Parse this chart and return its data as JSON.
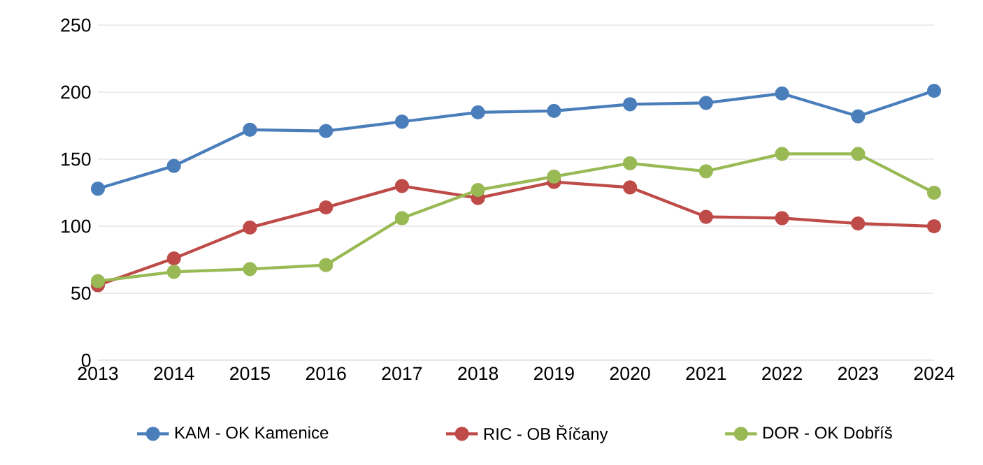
{
  "chart_data": {
    "type": "line",
    "x": [
      2013,
      2014,
      2015,
      2016,
      2017,
      2018,
      2019,
      2020,
      2021,
      2022,
      2023,
      2024
    ],
    "series": [
      {
        "name": "KAM - OK Kamenice",
        "color": "#4a7ebb",
        "values": [
          128,
          145,
          172,
          171,
          178,
          185,
          186,
          191,
          192,
          199,
          182,
          201
        ]
      },
      {
        "name": "RIC - OB Říčany",
        "color": "#be4b48",
        "values": [
          56,
          76,
          99,
          114,
          130,
          121,
          133,
          129,
          107,
          106,
          102,
          100
        ]
      },
      {
        "name": "DOR - OK Dobříš",
        "color": "#98b954",
        "values": [
          59,
          66,
          68,
          71,
          106,
          127,
          137,
          147,
          141,
          154,
          154,
          125
        ]
      }
    ],
    "xlim": [
      2013,
      2024
    ],
    "xticks": [
      2013,
      2014,
      2015,
      2016,
      2017,
      2018,
      2019,
      2020,
      2021,
      2022,
      2023,
      2024
    ],
    "ylim": [
      0,
      250
    ],
    "yticks": [
      0,
      50,
      100,
      150,
      200,
      250
    ],
    "grid": "y",
    "legend": "bottom",
    "marker": "circle",
    "line_style": "solid"
  }
}
